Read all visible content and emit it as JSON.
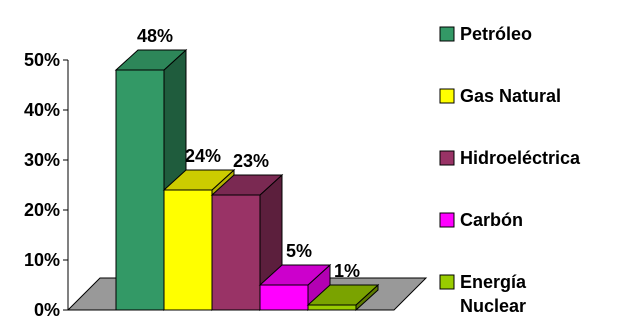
{
  "chart_data": {
    "type": "bar",
    "categories": [
      "Petróleo",
      "Gas Natural",
      "Hidroeléctrica",
      "Carbón",
      "Energía Nuclear"
    ],
    "values": [
      48,
      24,
      23,
      5,
      1
    ],
    "data_labels": [
      "48%",
      "24%",
      "23%",
      "5%",
      "1%"
    ],
    "colors": [
      "#339966",
      "#ffff00",
      "#993366",
      "#ff00ff",
      "#99cc00"
    ],
    "side_colors": [
      "#1f5c3d",
      "#b3b300",
      "#5c1f3d",
      "#b300b3",
      "#5c7a00"
    ],
    "top_colors": [
      "#2d8659",
      "#cccc00",
      "#7a2952",
      "#cc00cc",
      "#7aa300"
    ],
    "ylim": [
      0,
      50
    ],
    "y_ticks": [
      0,
      10,
      20,
      30,
      40,
      50
    ],
    "y_tick_labels": [
      "0%",
      "10%",
      "20%",
      "30%",
      "40%",
      "50%"
    ],
    "floor_color": "#999999",
    "grid": false,
    "legend_position": "right",
    "legend": [
      {
        "lines": [
          "Petróleo"
        ]
      },
      {
        "lines": [
          "Gas Natural"
        ]
      },
      {
        "lines": [
          "Hidroeléctrica"
        ]
      },
      {
        "lines": [
          "Carbón"
        ]
      },
      {
        "lines": [
          "Energía",
          "Nuclear"
        ]
      }
    ]
  }
}
